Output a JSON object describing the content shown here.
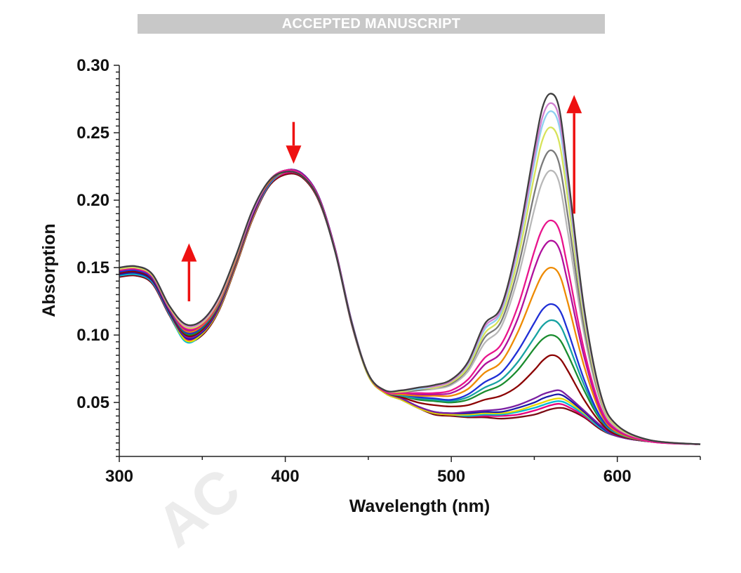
{
  "header": {
    "banner_text": "ACCEPTED MANUSCRIPT"
  },
  "watermark": {
    "text": "AC"
  },
  "chart_data": {
    "type": "line",
    "title": "",
    "xlabel": "Wavelength (nm)",
    "ylabel": "Absorption",
    "xlim": [
      300,
      650
    ],
    "ylim": [
      0.01,
      0.3
    ],
    "xticks": [
      300,
      400,
      500,
      600
    ],
    "yticks": [
      0.05,
      0.1,
      0.15,
      0.2,
      0.25,
      0.3
    ],
    "x": [
      300,
      310,
      320,
      330,
      340,
      350,
      360,
      370,
      380,
      390,
      400,
      410,
      420,
      430,
      440,
      450,
      460,
      470,
      480,
      490,
      500,
      510,
      520,
      530,
      540,
      550,
      555,
      560,
      565,
      570,
      580,
      590,
      600,
      620,
      650
    ],
    "series": [
      {
        "color": "#7a0a14",
        "values": [
          0.143,
          0.144,
          0.138,
          0.115,
          0.096,
          0.1,
          0.118,
          0.15,
          0.185,
          0.21,
          0.219,
          0.217,
          0.2,
          0.162,
          0.108,
          0.07,
          0.057,
          0.052,
          0.046,
          0.041,
          0.04,
          0.039,
          0.039,
          0.038,
          0.039,
          0.041,
          0.043,
          0.045,
          0.046,
          0.045,
          0.039,
          0.03,
          0.025,
          0.021,
          0.019
        ]
      },
      {
        "color": "#e4007c",
        "values": [
          0.144,
          0.145,
          0.139,
          0.116,
          0.097,
          0.101,
          0.119,
          0.151,
          0.186,
          0.211,
          0.22,
          0.218,
          0.201,
          0.163,
          0.109,
          0.07,
          0.057,
          0.052,
          0.046,
          0.042,
          0.041,
          0.04,
          0.04,
          0.04,
          0.041,
          0.044,
          0.046,
          0.048,
          0.049,
          0.047,
          0.04,
          0.031,
          0.025,
          0.021,
          0.019
        ]
      },
      {
        "color": "#00b8d4",
        "values": [
          0.144,
          0.145,
          0.139,
          0.116,
          0.095,
          0.101,
          0.119,
          0.151,
          0.186,
          0.211,
          0.221,
          0.219,
          0.202,
          0.163,
          0.109,
          0.07,
          0.057,
          0.052,
          0.046,
          0.042,
          0.041,
          0.04,
          0.041,
          0.041,
          0.043,
          0.046,
          0.048,
          0.05,
          0.051,
          0.049,
          0.041,
          0.031,
          0.025,
          0.021,
          0.019
        ]
      },
      {
        "color": "#e6d800",
        "values": [
          0.145,
          0.146,
          0.14,
          0.117,
          0.096,
          0.101,
          0.119,
          0.151,
          0.186,
          0.212,
          0.221,
          0.219,
          0.202,
          0.163,
          0.109,
          0.07,
          0.057,
          0.052,
          0.046,
          0.042,
          0.041,
          0.041,
          0.042,
          0.042,
          0.044,
          0.048,
          0.05,
          0.052,
          0.053,
          0.051,
          0.042,
          0.032,
          0.025,
          0.021,
          0.019
        ]
      },
      {
        "color": "#1a1aa8",
        "values": [
          0.145,
          0.146,
          0.14,
          0.117,
          0.098,
          0.102,
          0.12,
          0.152,
          0.187,
          0.212,
          0.222,
          0.22,
          0.203,
          0.164,
          0.11,
          0.071,
          0.058,
          0.053,
          0.047,
          0.043,
          0.042,
          0.042,
          0.043,
          0.043,
          0.046,
          0.05,
          0.053,
          0.055,
          0.056,
          0.053,
          0.043,
          0.032,
          0.025,
          0.021,
          0.019
        ]
      },
      {
        "color": "#7b1fa2",
        "values": [
          0.146,
          0.147,
          0.141,
          0.118,
          0.099,
          0.103,
          0.121,
          0.152,
          0.187,
          0.212,
          0.222,
          0.22,
          0.203,
          0.164,
          0.11,
          0.071,
          0.058,
          0.053,
          0.047,
          0.043,
          0.042,
          0.043,
          0.044,
          0.045,
          0.048,
          0.053,
          0.056,
          0.058,
          0.059,
          0.055,
          0.044,
          0.033,
          0.025,
          0.021,
          0.019
        ]
      },
      {
        "color": "#8b0000",
        "values": [
          0.146,
          0.147,
          0.141,
          0.118,
          0.1,
          0.104,
          0.122,
          0.153,
          0.188,
          0.213,
          0.222,
          0.219,
          0.202,
          0.163,
          0.109,
          0.071,
          0.058,
          0.054,
          0.05,
          0.048,
          0.047,
          0.048,
          0.052,
          0.055,
          0.062,
          0.074,
          0.081,
          0.085,
          0.083,
          0.074,
          0.052,
          0.035,
          0.026,
          0.021,
          0.019
        ]
      },
      {
        "color": "#1a8c2e",
        "values": [
          0.147,
          0.148,
          0.142,
          0.119,
          0.101,
          0.105,
          0.123,
          0.154,
          0.189,
          0.213,
          0.222,
          0.219,
          0.202,
          0.163,
          0.109,
          0.071,
          0.058,
          0.055,
          0.052,
          0.051,
          0.05,
          0.052,
          0.058,
          0.063,
          0.074,
          0.09,
          0.097,
          0.1,
          0.097,
          0.086,
          0.059,
          0.037,
          0.027,
          0.021,
          0.019
        ]
      },
      {
        "color": "#17a2a2",
        "values": [
          0.147,
          0.148,
          0.142,
          0.119,
          0.102,
          0.106,
          0.123,
          0.154,
          0.189,
          0.213,
          0.222,
          0.219,
          0.202,
          0.163,
          0.109,
          0.071,
          0.058,
          0.055,
          0.053,
          0.052,
          0.051,
          0.054,
          0.061,
          0.067,
          0.08,
          0.098,
          0.107,
          0.111,
          0.108,
          0.095,
          0.063,
          0.038,
          0.027,
          0.021,
          0.019
        ]
      },
      {
        "color": "#1f2fd6",
        "values": [
          0.147,
          0.148,
          0.142,
          0.119,
          0.102,
          0.106,
          0.124,
          0.155,
          0.189,
          0.213,
          0.222,
          0.219,
          0.202,
          0.163,
          0.109,
          0.071,
          0.058,
          0.056,
          0.054,
          0.053,
          0.052,
          0.056,
          0.065,
          0.072,
          0.088,
          0.109,
          0.119,
          0.123,
          0.119,
          0.104,
          0.067,
          0.039,
          0.028,
          0.021,
          0.019
        ]
      },
      {
        "color": "#ee8a00",
        "values": [
          0.148,
          0.149,
          0.143,
          0.12,
          0.103,
          0.107,
          0.124,
          0.155,
          0.19,
          0.213,
          0.222,
          0.219,
          0.202,
          0.163,
          0.109,
          0.071,
          0.058,
          0.056,
          0.055,
          0.055,
          0.055,
          0.06,
          0.072,
          0.08,
          0.102,
          0.132,
          0.145,
          0.15,
          0.145,
          0.125,
          0.077,
          0.042,
          0.028,
          0.021,
          0.019
        ]
      },
      {
        "color": "#b0109c",
        "values": [
          0.148,
          0.149,
          0.143,
          0.12,
          0.104,
          0.108,
          0.125,
          0.156,
          0.19,
          0.214,
          0.222,
          0.219,
          0.202,
          0.163,
          0.109,
          0.071,
          0.058,
          0.057,
          0.056,
          0.056,
          0.057,
          0.064,
          0.078,
          0.087,
          0.112,
          0.149,
          0.164,
          0.17,
          0.164,
          0.14,
          0.084,
          0.044,
          0.029,
          0.021,
          0.019
        ]
      },
      {
        "color": "#e8148c",
        "values": [
          0.148,
          0.149,
          0.143,
          0.12,
          0.105,
          0.108,
          0.125,
          0.156,
          0.19,
          0.214,
          0.222,
          0.219,
          0.202,
          0.163,
          0.109,
          0.071,
          0.058,
          0.057,
          0.057,
          0.057,
          0.059,
          0.067,
          0.083,
          0.093,
          0.121,
          0.162,
          0.179,
          0.185,
          0.178,
          0.151,
          0.089,
          0.046,
          0.03,
          0.021,
          0.019
        ]
      },
      {
        "color": "#b8b8b8",
        "values": [
          0.149,
          0.15,
          0.144,
          0.121,
          0.106,
          0.109,
          0.126,
          0.157,
          0.191,
          0.214,
          0.221,
          0.218,
          0.201,
          0.162,
          0.109,
          0.071,
          0.059,
          0.058,
          0.059,
          0.06,
          0.063,
          0.073,
          0.094,
          0.106,
          0.142,
          0.193,
          0.214,
          0.222,
          0.213,
          0.178,
          0.101,
          0.05,
          0.031,
          0.022,
          0.019
        ]
      },
      {
        "color": "#7a7a7a",
        "values": [
          0.149,
          0.15,
          0.144,
          0.121,
          0.106,
          0.109,
          0.126,
          0.157,
          0.191,
          0.214,
          0.221,
          0.218,
          0.201,
          0.162,
          0.109,
          0.071,
          0.059,
          0.058,
          0.059,
          0.061,
          0.064,
          0.075,
          0.098,
          0.11,
          0.149,
          0.205,
          0.228,
          0.237,
          0.227,
          0.19,
          0.106,
          0.052,
          0.032,
          0.022,
          0.019
        ]
      },
      {
        "color": "#d7e35a",
        "values": [
          0.149,
          0.15,
          0.144,
          0.121,
          0.106,
          0.109,
          0.126,
          0.157,
          0.191,
          0.214,
          0.221,
          0.218,
          0.201,
          0.162,
          0.109,
          0.071,
          0.059,
          0.058,
          0.06,
          0.061,
          0.065,
          0.076,
          0.101,
          0.114,
          0.156,
          0.218,
          0.245,
          0.254,
          0.243,
          0.203,
          0.112,
          0.053,
          0.032,
          0.022,
          0.019
        ]
      },
      {
        "color": "#8fd0f0",
        "values": [
          0.15,
          0.151,
          0.145,
          0.122,
          0.107,
          0.11,
          0.127,
          0.158,
          0.191,
          0.214,
          0.221,
          0.218,
          0.201,
          0.162,
          0.109,
          0.071,
          0.059,
          0.059,
          0.06,
          0.062,
          0.066,
          0.078,
          0.104,
          0.117,
          0.162,
          0.227,
          0.256,
          0.266,
          0.255,
          0.212,
          0.116,
          0.055,
          0.033,
          0.022,
          0.019
        ]
      },
      {
        "color": "#d080d0",
        "values": [
          0.15,
          0.151,
          0.145,
          0.122,
          0.107,
          0.11,
          0.127,
          0.158,
          0.191,
          0.214,
          0.221,
          0.218,
          0.201,
          0.162,
          0.109,
          0.071,
          0.059,
          0.059,
          0.061,
          0.062,
          0.066,
          0.079,
          0.106,
          0.119,
          0.165,
          0.232,
          0.262,
          0.272,
          0.261,
          0.217,
          0.118,
          0.055,
          0.033,
          0.022,
          0.019
        ]
      },
      {
        "color": "#3f3f3f",
        "values": [
          0.15,
          0.151,
          0.145,
          0.122,
          0.108,
          0.111,
          0.128,
          0.158,
          0.192,
          0.214,
          0.221,
          0.218,
          0.201,
          0.162,
          0.109,
          0.071,
          0.059,
          0.059,
          0.061,
          0.063,
          0.067,
          0.08,
          0.108,
          0.121,
          0.169,
          0.238,
          0.269,
          0.279,
          0.268,
          0.222,
          0.12,
          0.056,
          0.033,
          0.022,
          0.019
        ]
      }
    ],
    "annotations": [
      {
        "type": "arrow",
        "direction": "up",
        "x": 342,
        "y_from": 0.125,
        "y_to": 0.168,
        "color": "#ee1111"
      },
      {
        "type": "arrow",
        "direction": "down",
        "x": 405,
        "y_from": 0.258,
        "y_to": 0.227,
        "color": "#ee1111"
      },
      {
        "type": "arrow",
        "direction": "up",
        "x": 574,
        "y_from": 0.19,
        "y_to": 0.278,
        "color": "#ee1111"
      }
    ],
    "grid": false,
    "legend": "none"
  }
}
